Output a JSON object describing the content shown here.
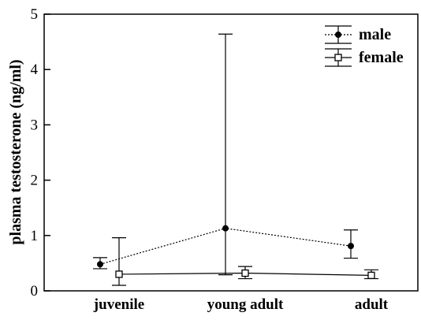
{
  "chart_data": {
    "type": "line",
    "title": "",
    "xlabel": "",
    "ylabel": "plasma testosterone (ng/ml)",
    "categories": [
      "juvenile",
      "young adult",
      "adult"
    ],
    "ylim": [
      0,
      5
    ],
    "yticks": [
      "0",
      "1",
      "2",
      "3",
      "4",
      "5"
    ],
    "grid": false,
    "legend_position": "top-right",
    "series": [
      {
        "name": "male",
        "marker": "filled-circle",
        "line_style": "dotted",
        "color": "#000000",
        "values": [
          0.48,
          1.13,
          0.81
        ],
        "error_low": [
          0.4,
          0.29,
          0.59
        ],
        "error_high": [
          0.6,
          4.64,
          1.1
        ]
      },
      {
        "name": "female",
        "marker": "open-square",
        "line_style": "solid",
        "color": "#000000",
        "values": [
          0.3,
          0.32,
          0.28
        ],
        "error_low": [
          0.1,
          0.22,
          0.22
        ],
        "error_high": [
          0.96,
          0.44,
          0.38
        ]
      }
    ]
  }
}
